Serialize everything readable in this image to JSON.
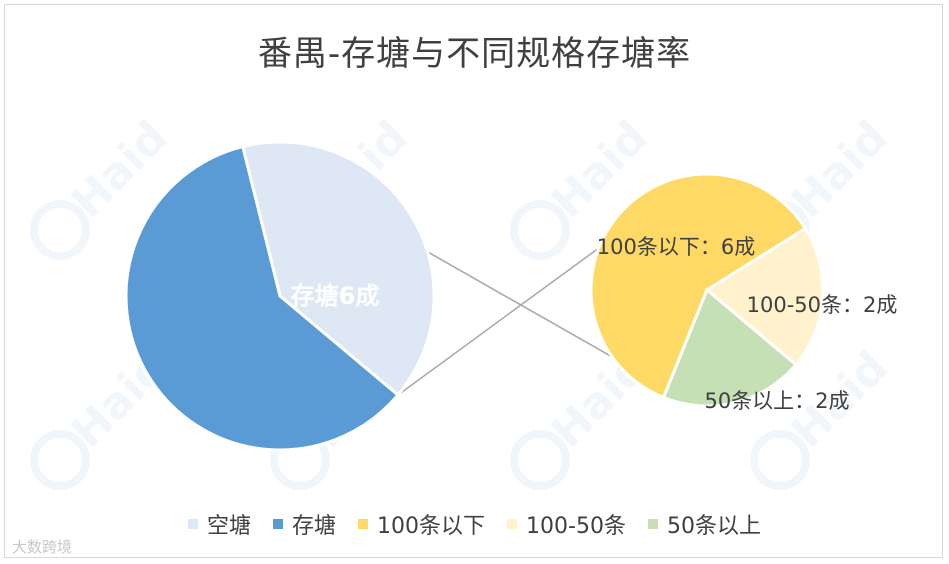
{
  "chart_data": {
    "type": "pie",
    "title": "番禺-存塘与不同规格存塘率",
    "main_pie": {
      "slices": [
        {
          "name": "空塘",
          "value": 4,
          "color": "#dde8f4",
          "label": ""
        },
        {
          "name": "存塘",
          "value": 6,
          "color": "#5b9bd5",
          "label": "存塘6成"
        }
      ]
    },
    "sub_pie": {
      "slices": [
        {
          "name": "100条以下",
          "value": 6,
          "color": "#ffd966",
          "label": "100条以下：6成"
        },
        {
          "name": "100-50条",
          "value": 2,
          "color": "#fff2cc",
          "label": "100-50条：2成"
        },
        {
          "name": "50条以上",
          "value": 2,
          "color": "#c5e0b4",
          "label": "50条以上：2成"
        }
      ]
    },
    "legend": [
      {
        "name": "空塘",
        "color": "#dde8f4"
      },
      {
        "name": "存塘",
        "color": "#5b9bd5"
      },
      {
        "name": "100条以下",
        "color": "#ffd966"
      },
      {
        "name": "100-50条",
        "color": "#fff2cc"
      },
      {
        "name": "50条以上",
        "color": "#c5e0b4"
      }
    ],
    "legend_position": "bottom"
  },
  "watermarks": {
    "logo_text": "Haid",
    "corner_text": "大数跨境"
  }
}
